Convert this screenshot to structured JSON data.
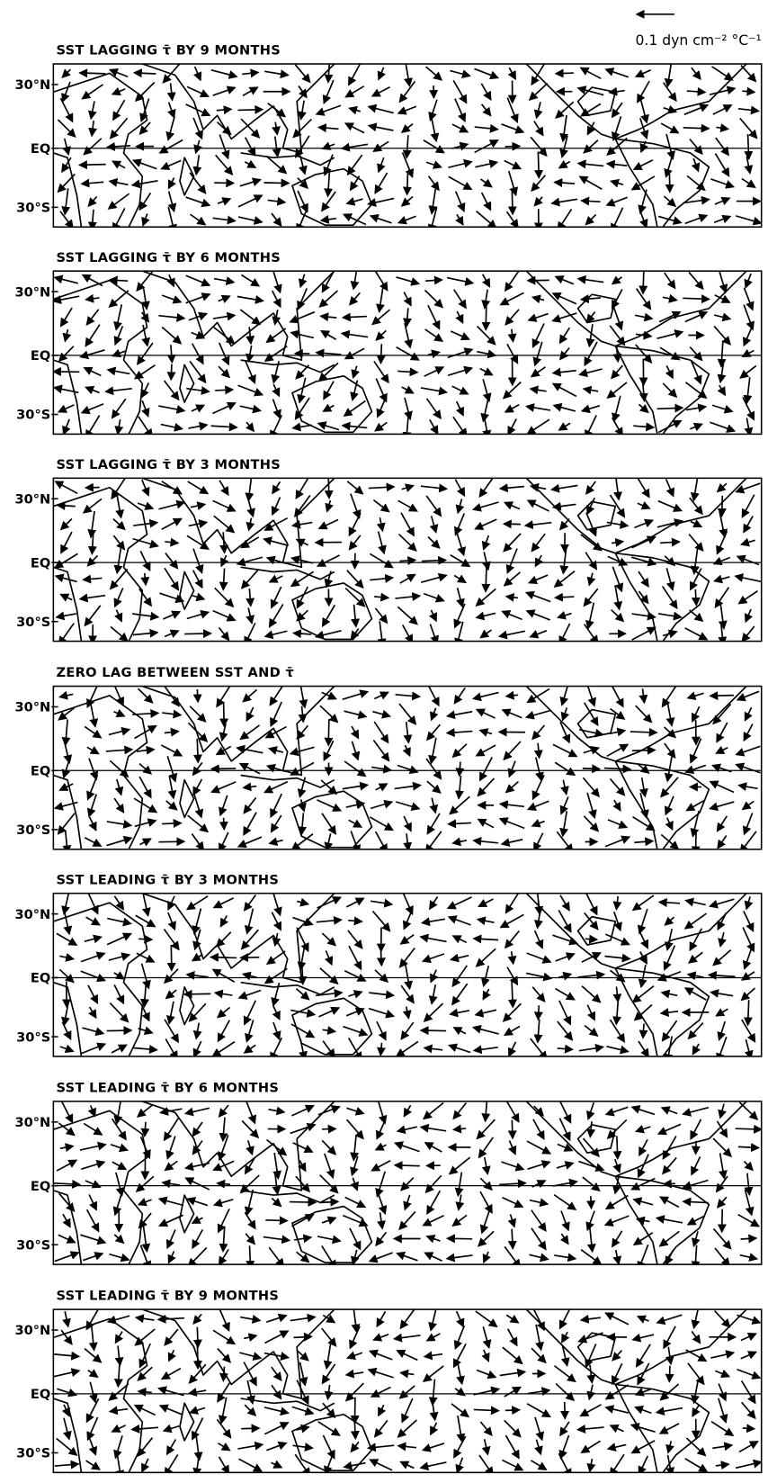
{
  "header": {
    "scale_label": "0.1 dyn cm⁻² °C⁻¹"
  },
  "lat_labels": [
    "30°N",
    "EQ",
    "30°S"
  ],
  "panels": [
    {
      "title": "SST LAGGING τ̄ BY 9 MONTHS"
    },
    {
      "title": "SST LAGGING τ̄ BY 6 MONTHS"
    },
    {
      "title": "SST LAGGING τ̄ BY 3 MONTHS"
    },
    {
      "title": "ZERO LAG BETWEEN SST AND τ̄"
    },
    {
      "title": "SST LEADING τ̄ BY 3 MONTHS"
    },
    {
      "title": "SST LEADING τ̄ BY 6 MONTHS"
    },
    {
      "title": "SST LEADING τ̄ BY 9 MONTHS"
    }
  ]
}
